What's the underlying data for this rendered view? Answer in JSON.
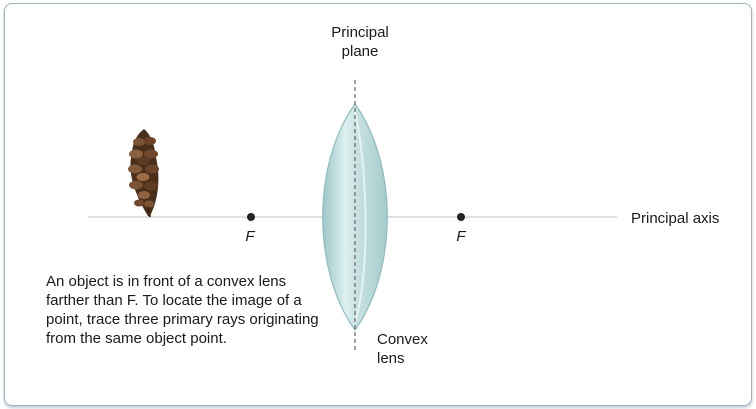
{
  "labels": {
    "principal_plane": "Principal\nplane",
    "principal_axis": "Principal axis",
    "focal_left": "F",
    "focal_right": "F",
    "convex_lens": "Convex\nlens"
  },
  "caption": "An object is in front of a convex lens farther than F. To locate the image of a point, trace three primary rays originating from the same object point.",
  "colors": {
    "lens_fill": "#cfe5e5",
    "lens_edge": "#8fbcbf",
    "axis": "#c8d0d4",
    "focal_point": "#222222",
    "pinecone": "#5a3a22"
  },
  "icons": {
    "object": "pinecone-icon"
  }
}
